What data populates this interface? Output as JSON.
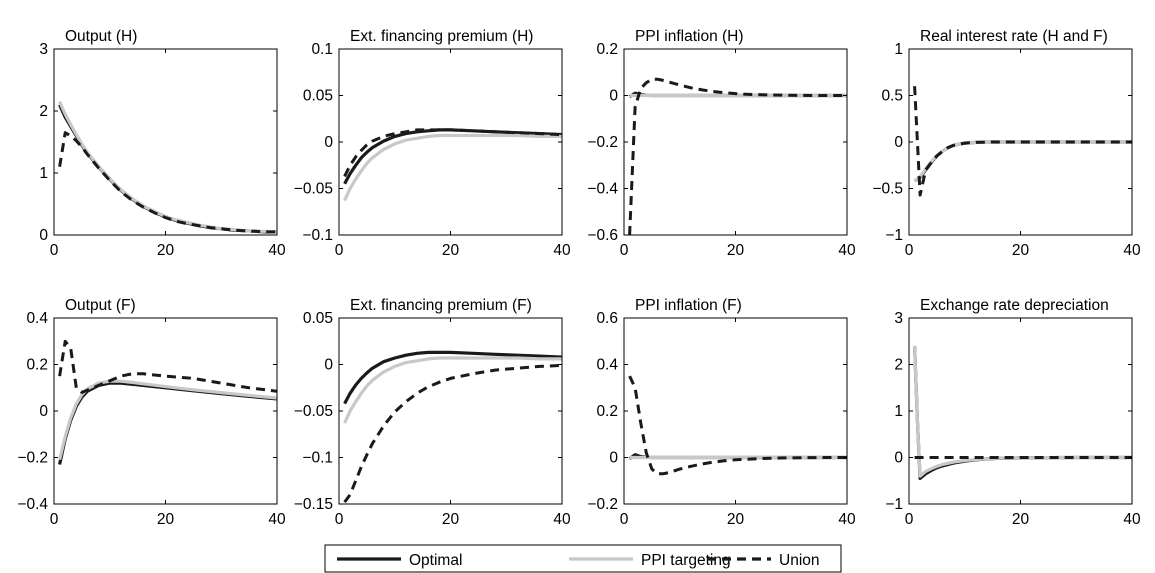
{
  "series_meta": [
    {
      "key": "optimal",
      "name": "Optimal",
      "color": "#1a1a1a",
      "dash": "solid"
    },
    {
      "key": "ppi",
      "name": "PPI targeting",
      "color": "#c8c8c8",
      "dash": "solid"
    },
    {
      "key": "union",
      "name": "Union",
      "color": "#1a1a1a",
      "dash": "dashed"
    }
  ],
  "legend": {
    "position": "bottom-center",
    "entries": [
      "Optimal",
      "PPI targeting",
      "Union"
    ]
  },
  "chart_data": [
    {
      "type": "line",
      "title": "Output (H)",
      "xlim": [
        0,
        40
      ],
      "ylim": [
        0,
        3
      ],
      "xticks": [
        "0",
        "20",
        "40"
      ],
      "yticks": [
        "0",
        "1",
        "2",
        "3"
      ],
      "x": [
        1,
        2,
        3,
        4,
        5,
        6,
        8,
        10,
        12,
        14,
        16,
        18,
        20,
        22,
        24,
        26,
        28,
        30,
        32,
        34,
        36,
        38,
        40
      ],
      "series": [
        {
          "name": "Optimal",
          "values": [
            2.1,
            1.9,
            1.75,
            1.6,
            1.45,
            1.32,
            1.1,
            0.9,
            0.72,
            0.58,
            0.46,
            0.37,
            0.29,
            0.23,
            0.19,
            0.15,
            0.12,
            0.1,
            0.08,
            0.07,
            0.06,
            0.05,
            0.05
          ]
        },
        {
          "name": "PPI targeting",
          "values": [
            2.15,
            1.95,
            1.78,
            1.62,
            1.47,
            1.33,
            1.11,
            0.91,
            0.73,
            0.59,
            0.47,
            0.38,
            0.3,
            0.24,
            0.2,
            0.16,
            0.13,
            0.1,
            0.09,
            0.07,
            0.06,
            0.06,
            0.05
          ]
        },
        {
          "name": "Union",
          "values": [
            1.1,
            1.65,
            1.6,
            1.52,
            1.42,
            1.3,
            1.08,
            0.88,
            0.7,
            0.56,
            0.45,
            0.36,
            0.28,
            0.22,
            0.18,
            0.15,
            0.12,
            0.1,
            0.08,
            0.07,
            0.06,
            0.05,
            0.05
          ]
        }
      ]
    },
    {
      "type": "line",
      "title": "Ext. financing premium (H)",
      "xlim": [
        0,
        40
      ],
      "ylim": [
        -0.1,
        0.1
      ],
      "xticks": [
        "0",
        "20",
        "40"
      ],
      "yticks": [
        "-0.1",
        "-0.05",
        "0",
        "0.05",
        "0.1"
      ],
      "x": [
        1,
        2,
        3,
        4,
        5,
        6,
        8,
        10,
        12,
        14,
        16,
        18,
        20,
        24,
        28,
        32,
        36,
        40
      ],
      "series": [
        {
          "name": "Optimal",
          "values": [
            -0.045,
            -0.034,
            -0.025,
            -0.017,
            -0.011,
            -0.006,
            0.001,
            0.006,
            0.009,
            0.011,
            0.012,
            0.013,
            0.013,
            0.012,
            0.011,
            0.01,
            0.009,
            0.008
          ]
        },
        {
          "name": "PPI targeting",
          "values": [
            -0.063,
            -0.05,
            -0.04,
            -0.031,
            -0.023,
            -0.017,
            -0.008,
            -0.002,
            0.002,
            0.004,
            0.006,
            0.007,
            0.007,
            0.007,
            0.007,
            0.007,
            0.006,
            0.006
          ]
        },
        {
          "name": "Union",
          "values": [
            -0.037,
            -0.025,
            -0.016,
            -0.009,
            -0.003,
            0.001,
            0.006,
            0.009,
            0.011,
            0.013,
            0.013,
            0.013,
            0.013,
            0.012,
            0.011,
            0.01,
            0.009,
            0.008
          ]
        }
      ]
    },
    {
      "type": "line",
      "title": "PPI inflation (H)",
      "xlim": [
        0,
        40
      ],
      "ylim": [
        -0.6,
        0.2
      ],
      "xticks": [
        "0",
        "20",
        "40"
      ],
      "yticks": [
        "-0.6",
        "-0.4",
        "-0.2",
        "0",
        "0.2"
      ],
      "x": [
        1,
        2,
        3,
        4,
        5,
        6,
        7,
        8,
        10,
        12,
        14,
        16,
        18,
        20,
        22,
        25,
        30,
        35,
        40
      ],
      "series": [
        {
          "name": "Optimal",
          "values": [
            -0.005,
            0.01,
            0.004,
            0.001,
            0,
            0,
            0,
            0,
            0,
            0,
            0,
            0,
            0,
            0,
            0,
            0,
            0,
            0,
            0
          ]
        },
        {
          "name": "PPI targeting",
          "values": [
            0,
            0,
            0,
            0,
            0,
            0,
            0,
            0,
            0,
            0,
            0,
            0,
            0,
            0,
            0,
            0,
            0,
            0,
            0
          ]
        },
        {
          "name": "Union",
          "values": [
            -0.6,
            -0.05,
            0.03,
            0.055,
            0.07,
            0.07,
            0.065,
            0.058,
            0.045,
            0.033,
            0.024,
            0.017,
            0.012,
            0.008,
            0.005,
            0.003,
            0.001,
            0,
            0
          ]
        }
      ]
    },
    {
      "type": "line",
      "title": "Real interest rate (H and F)",
      "xlim": [
        0,
        40
      ],
      "ylim": [
        -1,
        1
      ],
      "xticks": [
        "0",
        "20",
        "40"
      ],
      "yticks": [
        "-1",
        "-0.5",
        "0",
        "0.5",
        "1"
      ],
      "x": [
        1,
        2,
        3,
        4,
        5,
        6,
        7,
        8,
        10,
        12,
        14,
        16,
        20,
        25,
        30,
        35,
        40
      ],
      "series": [
        {
          "name": "Optimal",
          "values": [
            -0.42,
            -0.38,
            -0.3,
            -0.22,
            -0.15,
            -0.1,
            -0.06,
            -0.035,
            -0.012,
            -0.004,
            0,
            0,
            0,
            0,
            0,
            0,
            0
          ]
        },
        {
          "name": "PPI targeting",
          "values": [
            -0.42,
            -0.37,
            -0.29,
            -0.21,
            -0.15,
            -0.1,
            -0.06,
            -0.035,
            -0.012,
            -0.004,
            0,
            0,
            0,
            0,
            0,
            0,
            0
          ]
        },
        {
          "name": "Union",
          "values": [
            0.6,
            -0.57,
            -0.3,
            -0.22,
            -0.15,
            -0.1,
            -0.06,
            -0.035,
            -0.012,
            -0.004,
            0,
            0,
            0,
            0,
            0,
            0,
            0
          ]
        }
      ]
    },
    {
      "type": "line",
      "title": "Output (F)",
      "xlim": [
        0,
        40
      ],
      "ylim": [
        -0.4,
        0.4
      ],
      "xticks": [
        "0",
        "20",
        "40"
      ],
      "yticks": [
        "-0.4",
        "-0.2",
        "0",
        "0.2",
        "0.4"
      ],
      "x": [
        1,
        2,
        3,
        4,
        5,
        6,
        8,
        10,
        12,
        14,
        16,
        18,
        20,
        25,
        30,
        35,
        40
      ],
      "series": [
        {
          "name": "Optimal",
          "values": [
            -0.23,
            -0.12,
            -0.04,
            0.02,
            0.06,
            0.085,
            0.11,
            0.12,
            0.12,
            0.115,
            0.11,
            0.105,
            0.1,
            0.087,
            0.075,
            0.063,
            0.052
          ]
        },
        {
          "name": "PPI targeting",
          "values": [
            -0.21,
            -0.11,
            -0.03,
            0.03,
            0.07,
            0.095,
            0.12,
            0.128,
            0.128,
            0.123,
            0.117,
            0.111,
            0.105,
            0.091,
            0.079,
            0.067,
            0.056
          ]
        },
        {
          "name": "Union",
          "values": [
            0.15,
            0.3,
            0.27,
            0.1,
            0.08,
            0.09,
            0.11,
            0.13,
            0.15,
            0.16,
            0.16,
            0.155,
            0.15,
            0.14,
            0.12,
            0.1,
            0.085
          ]
        }
      ]
    },
    {
      "type": "line",
      "title": "Ext. financing premium (F)",
      "xlim": [
        0,
        40
      ],
      "ylim": [
        -0.15,
        0.05
      ],
      "xticks": [
        "0",
        "20",
        "40"
      ],
      "yticks": [
        "-0.15",
        "-0.1",
        "-0.05",
        "0",
        "0.05"
      ],
      "x": [
        1,
        2,
        3,
        4,
        5,
        6,
        8,
        10,
        12,
        14,
        16,
        18,
        20,
        24,
        28,
        32,
        36,
        40
      ],
      "series": [
        {
          "name": "Optimal",
          "values": [
            -0.042,
            -0.031,
            -0.022,
            -0.015,
            -0.009,
            -0.004,
            0.003,
            0.007,
            0.01,
            0.012,
            0.013,
            0.013,
            0.013,
            0.012,
            0.011,
            0.01,
            0.009,
            0.008
          ]
        },
        {
          "name": "PPI targeting",
          "values": [
            -0.063,
            -0.05,
            -0.04,
            -0.031,
            -0.023,
            -0.017,
            -0.008,
            -0.002,
            0.002,
            0.004,
            0.006,
            0.007,
            0.007,
            0.007,
            0.007,
            0.007,
            0.006,
            0.006
          ]
        },
        {
          "name": "Union",
          "values": [
            -0.148,
            -0.14,
            -0.125,
            -0.11,
            -0.097,
            -0.085,
            -0.066,
            -0.051,
            -0.04,
            -0.031,
            -0.024,
            -0.019,
            -0.015,
            -0.01,
            -0.006,
            -0.004,
            -0.002,
            -0.001
          ]
        }
      ]
    },
    {
      "type": "line",
      "title": "PPI inflation (F)",
      "xlim": [
        0,
        40
      ],
      "ylim": [
        -0.2,
        0.6
      ],
      "xticks": [
        "0",
        "20",
        "40"
      ],
      "yticks": [
        "-0.2",
        "0",
        "0.2",
        "0.4",
        "0.6"
      ],
      "x": [
        1,
        2,
        3,
        4,
        5,
        6,
        7,
        8,
        10,
        12,
        14,
        16,
        18,
        20,
        24,
        28,
        32,
        36,
        40
      ],
      "series": [
        {
          "name": "Optimal",
          "values": [
            -0.005,
            0.012,
            0.004,
            0.001,
            0,
            0,
            0,
            0,
            0,
            0,
            0,
            0,
            0,
            0,
            0,
            0,
            0,
            0,
            0
          ]
        },
        {
          "name": "PPI targeting",
          "values": [
            0,
            0,
            0,
            0,
            0,
            0,
            0,
            0,
            0,
            0,
            0,
            0,
            0,
            0,
            0,
            0,
            0,
            0,
            0
          ]
        },
        {
          "name": "Union",
          "values": [
            0.35,
            0.3,
            0.15,
            0.02,
            -0.05,
            -0.07,
            -0.07,
            -0.065,
            -0.05,
            -0.038,
            -0.028,
            -0.02,
            -0.014,
            -0.01,
            -0.005,
            -0.002,
            -0.001,
            0,
            0
          ]
        }
      ]
    },
    {
      "type": "line",
      "title": "Exchange rate depreciation",
      "xlim": [
        0,
        40
      ],
      "ylim": [
        -1,
        3
      ],
      "xticks": [
        "0",
        "20",
        "40"
      ],
      "yticks": [
        "-1",
        "0",
        "1",
        "2",
        "3"
      ],
      "x": [
        1,
        1.5,
        2,
        3,
        4,
        5,
        6,
        8,
        10,
        12,
        14,
        16,
        18,
        20,
        25,
        30,
        35,
        40
      ],
      "series": [
        {
          "name": "Optimal",
          "values": [
            2.4,
            0.8,
            -0.45,
            -0.35,
            -0.28,
            -0.22,
            -0.18,
            -0.12,
            -0.08,
            -0.05,
            -0.03,
            -0.02,
            -0.012,
            -0.008,
            -0.003,
            -0.001,
            0,
            0
          ]
        },
        {
          "name": "PPI targeting",
          "values": [
            2.4,
            0.8,
            -0.4,
            -0.3,
            -0.24,
            -0.19,
            -0.15,
            -0.1,
            -0.065,
            -0.042,
            -0.027,
            -0.017,
            -0.011,
            -0.007,
            -0.002,
            -0.001,
            0,
            0
          ]
        },
        {
          "name": "Union",
          "values": [
            0,
            0,
            0,
            0,
            0,
            0,
            0,
            0,
            0,
            0,
            0,
            0,
            0,
            0,
            0,
            0,
            0,
            0
          ]
        }
      ]
    }
  ]
}
